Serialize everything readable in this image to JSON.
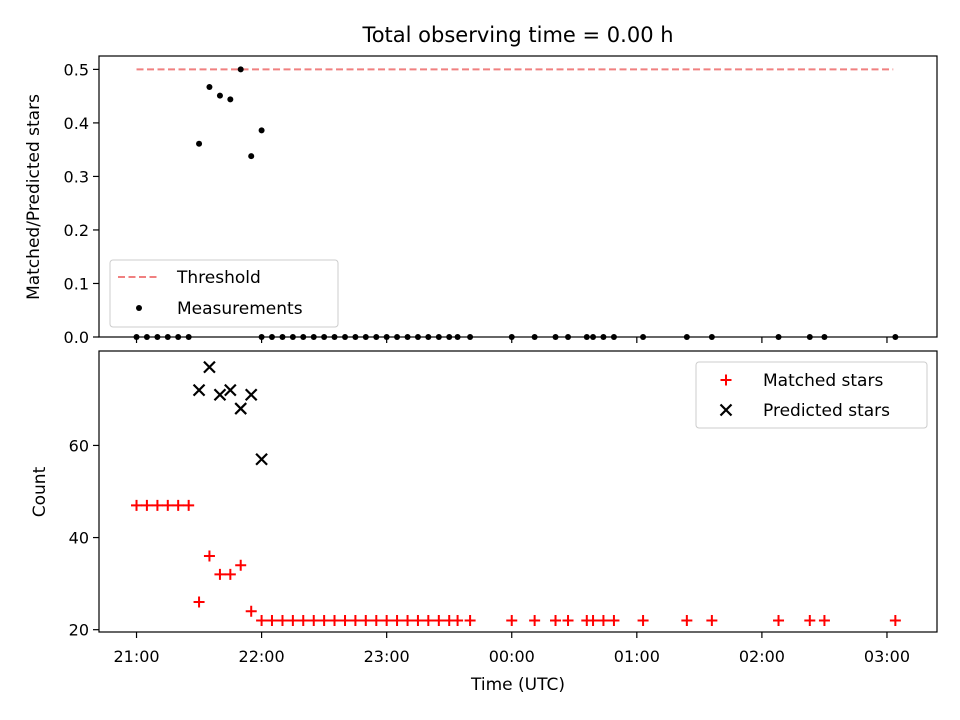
{
  "chart_data": [
    {
      "type": "scatter",
      "title": "Total observing time = 0.00 h",
      "ylabel": "Matched/Predicted stars",
      "xlabel": "",
      "ylim": [
        0.0,
        0.525
      ],
      "yticks": [
        0.0,
        0.1,
        0.2,
        0.3,
        0.4,
        0.5
      ],
      "ytick_labels": [
        "0.0",
        "0.1",
        "0.2",
        "0.3",
        "0.4",
        "0.5"
      ],
      "legend_position": "bottom-left",
      "threshold": {
        "name": "Threshold",
        "value": 0.5,
        "x_start": 0.0,
        "x_end": 6.05,
        "color": "#f08080",
        "style": "dashed"
      },
      "series": [
        {
          "name": "Measurements",
          "color": "#000000",
          "marker": "dot",
          "points": [
            [
              0.0,
              0.0
            ],
            [
              0.083,
              0.0
            ],
            [
              0.167,
              0.0
            ],
            [
              0.25,
              0.0
            ],
            [
              0.333,
              0.0
            ],
            [
              0.417,
              0.0
            ],
            [
              0.5,
              0.361
            ],
            [
              0.583,
              0.467
            ],
            [
              0.667,
              0.451
            ],
            [
              0.75,
              0.444
            ],
            [
              0.833,
              0.5
            ],
            [
              0.917,
              0.338
            ],
            [
              1.0,
              0.386
            ],
            [
              1.0,
              0.0
            ],
            [
              1.083,
              0.0
            ],
            [
              1.167,
              0.0
            ],
            [
              1.25,
              0.0
            ],
            [
              1.333,
              0.0
            ],
            [
              1.417,
              0.0
            ],
            [
              1.5,
              0.0
            ],
            [
              1.583,
              0.0
            ],
            [
              1.667,
              0.0
            ],
            [
              1.75,
              0.0
            ],
            [
              1.833,
              0.0
            ],
            [
              1.917,
              0.0
            ],
            [
              2.0,
              0.0
            ],
            [
              2.083,
              0.0
            ],
            [
              2.167,
              0.0
            ],
            [
              2.25,
              0.0
            ],
            [
              2.333,
              0.0
            ],
            [
              2.417,
              0.0
            ],
            [
              2.5,
              0.0
            ],
            [
              2.567,
              0.0
            ],
            [
              2.667,
              0.0
            ],
            [
              3.0,
              0.0
            ],
            [
              3.183,
              0.0
            ],
            [
              3.35,
              0.0
            ],
            [
              3.45,
              0.0
            ],
            [
              3.6,
              0.0
            ],
            [
              3.65,
              0.0
            ],
            [
              3.733,
              0.0
            ],
            [
              3.817,
              0.0
            ],
            [
              4.05,
              0.0
            ],
            [
              4.4,
              0.0
            ],
            [
              4.6,
              0.0
            ],
            [
              5.133,
              0.0
            ],
            [
              5.383,
              0.0
            ],
            [
              5.5,
              0.0
            ],
            [
              6.067,
              0.0
            ]
          ]
        }
      ]
    },
    {
      "type": "scatter",
      "title": "",
      "ylabel": "Count",
      "xlabel": "Time (UTC)",
      "ylim": [
        19.5,
        80.5
      ],
      "yticks": [
        20,
        40,
        60
      ],
      "ytick_labels": [
        "20",
        "40",
        "60"
      ],
      "xlim": [
        -0.3,
        6.4
      ],
      "xticks": [
        0,
        1,
        2,
        3,
        4,
        5,
        6
      ],
      "xtick_labels": [
        "21:00",
        "22:00",
        "23:00",
        "00:00",
        "01:00",
        "02:00",
        "03:00"
      ],
      "legend_position": "top-right",
      "series": [
        {
          "name": "Matched stars",
          "color": "#ff0000",
          "marker": "plus",
          "points": [
            [
              0.0,
              47
            ],
            [
              0.083,
              47
            ],
            [
              0.167,
              47
            ],
            [
              0.25,
              47
            ],
            [
              0.333,
              47
            ],
            [
              0.417,
              47
            ],
            [
              0.5,
              26
            ],
            [
              0.583,
              36
            ],
            [
              0.667,
              32
            ],
            [
              0.75,
              32
            ],
            [
              0.833,
              34
            ],
            [
              0.917,
              24
            ],
            [
              1.0,
              22
            ],
            [
              1.083,
              22
            ],
            [
              1.167,
              22
            ],
            [
              1.25,
              22
            ],
            [
              1.333,
              22
            ],
            [
              1.417,
              22
            ],
            [
              1.5,
              22
            ],
            [
              1.583,
              22
            ],
            [
              1.667,
              22
            ],
            [
              1.75,
              22
            ],
            [
              1.833,
              22
            ],
            [
              1.917,
              22
            ],
            [
              2.0,
              22
            ],
            [
              2.083,
              22
            ],
            [
              2.167,
              22
            ],
            [
              2.25,
              22
            ],
            [
              2.333,
              22
            ],
            [
              2.417,
              22
            ],
            [
              2.5,
              22
            ],
            [
              2.567,
              22
            ],
            [
              2.667,
              22
            ],
            [
              3.0,
              22
            ],
            [
              3.183,
              22
            ],
            [
              3.35,
              22
            ],
            [
              3.45,
              22
            ],
            [
              3.6,
              22
            ],
            [
              3.65,
              22
            ],
            [
              3.733,
              22
            ],
            [
              3.817,
              22
            ],
            [
              4.05,
              22
            ],
            [
              4.4,
              22
            ],
            [
              4.6,
              22
            ],
            [
              5.133,
              22
            ],
            [
              5.383,
              22
            ],
            [
              5.5,
              22
            ],
            [
              6.067,
              22
            ]
          ]
        },
        {
          "name": "Predicted stars",
          "color": "#000000",
          "marker": "x",
          "points": [
            [
              0.5,
              72
            ],
            [
              0.583,
              77
            ],
            [
              0.667,
              71
            ],
            [
              0.75,
              72
            ],
            [
              0.833,
              68
            ],
            [
              0.917,
              71
            ],
            [
              1.0,
              57
            ]
          ]
        }
      ]
    }
  ]
}
